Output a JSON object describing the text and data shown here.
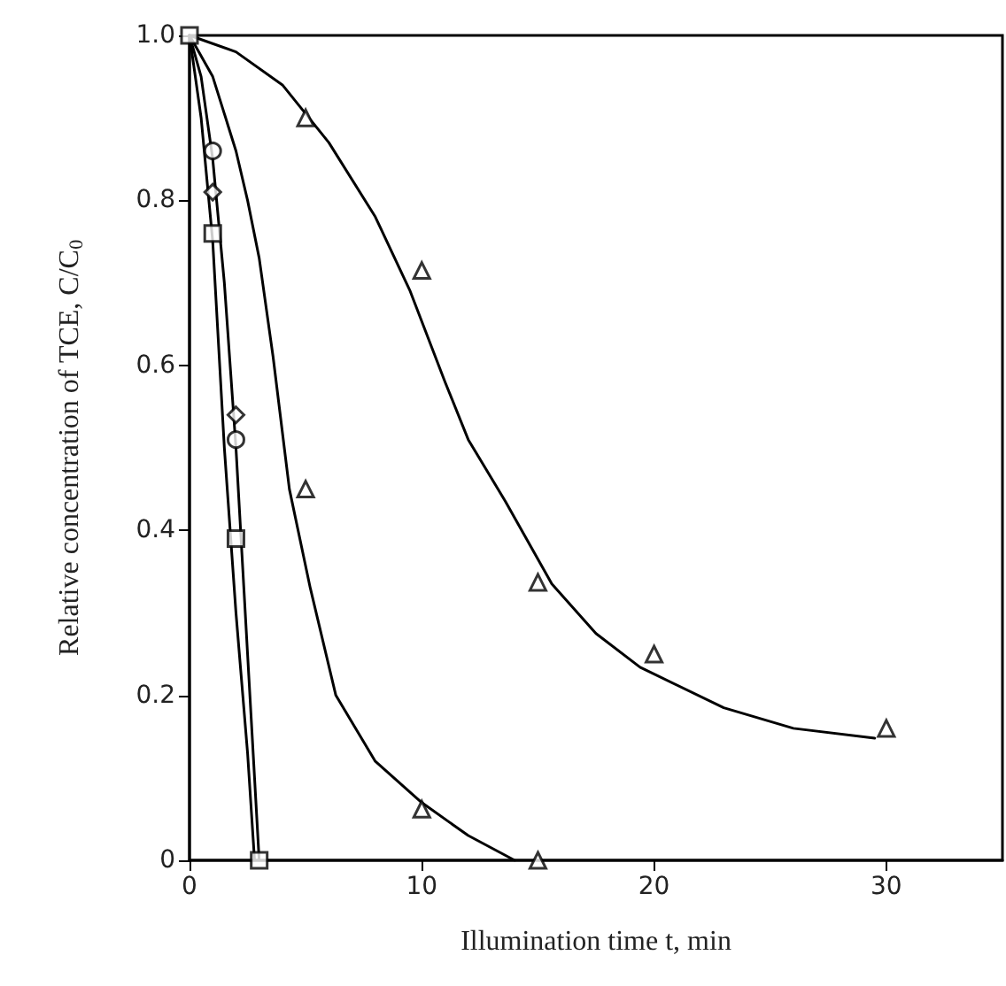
{
  "chart_data": {
    "type": "scatter",
    "xlabel": "Illumination time t, min",
    "ylabel": "Relative concentration of TCE, C/C$_{0}$",
    "xlim": [
      0,
      35
    ],
    "xticks": [
      0,
      10,
      20,
      30
    ],
    "ylim": [
      0,
      1
    ],
    "yticks": [
      0,
      {
        "value": 0.2,
        "label": "0.2"
      },
      {
        "value": 0.4,
        "label": "0.4"
      },
      {
        "value": 0.6,
        "label": "0.6"
      },
      {
        "value": 0.8,
        "label": "0.8"
      },
      {
        "value": 1,
        "label": "1.0"
      }
    ],
    "grid": false,
    "series": [
      {
        "marker": "triangle",
        "color": "#000000",
        "x": [
          5,
          10,
          15,
          20,
          30
        ],
        "values": [
          0.9,
          0.715,
          0.337,
          0.25,
          0.16
        ]
      },
      {
        "marker": "triangle",
        "color": "#000000",
        "x": [
          5,
          10,
          15
        ],
        "values": [
          0.45,
          0.062,
          0
        ]
      },
      {
        "marker": "circle",
        "color": "#000000",
        "x": [
          1,
          2
        ],
        "values": [
          0.86,
          0.51
        ]
      },
      {
        "marker": "diamond",
        "color": "#000000",
        "x": [
          1,
          2
        ],
        "values": [
          0.81,
          0.54
        ]
      },
      {
        "marker": "square",
        "color": "#000000",
        "x": [
          0,
          1,
          2,
          3
        ],
        "values": [
          1,
          0.76,
          0.39,
          0
        ]
      },
      {
        "type": "line",
        "marker": "none",
        "color": "#000000",
        "x": [
          0,
          2,
          4,
          6,
          8,
          9.5,
          11,
          12,
          13.6,
          15.6,
          17.5,
          19.4,
          23,
          26,
          29.5
        ],
        "values": [
          1,
          0.98,
          0.94,
          0.87,
          0.78,
          0.69,
          0.58,
          0.51,
          0.435,
          0.335,
          0.275,
          0.234,
          0.185,
          0.16,
          0.148
        ]
      },
      {
        "type": "line",
        "marker": "none",
        "color": "#000000",
        "x": [
          0,
          1,
          2,
          2.5,
          3,
          3.6,
          4.3,
          5.2,
          6.3,
          8,
          10,
          12,
          14
        ],
        "values": [
          1,
          0.95,
          0.86,
          0.8,
          0.73,
          0.61,
          0.45,
          0.33,
          0.2,
          0.12,
          0.07,
          0.03,
          0
        ]
      },
      {
        "type": "line",
        "marker": "none",
        "color": "#000000",
        "x": [
          0,
          0.5,
          1,
          1.5,
          2,
          2.5,
          3
        ],
        "values": [
          1,
          0.95,
          0.85,
          0.7,
          0.5,
          0.25,
          0
        ]
      },
      {
        "type": "line",
        "marker": "none",
        "color": "#000000",
        "x": [
          0,
          0.5,
          1,
          1.5,
          2,
          2.5,
          2.8
        ],
        "values": [
          1,
          0.9,
          0.75,
          0.5,
          0.3,
          0.13,
          0
        ]
      }
    ]
  }
}
